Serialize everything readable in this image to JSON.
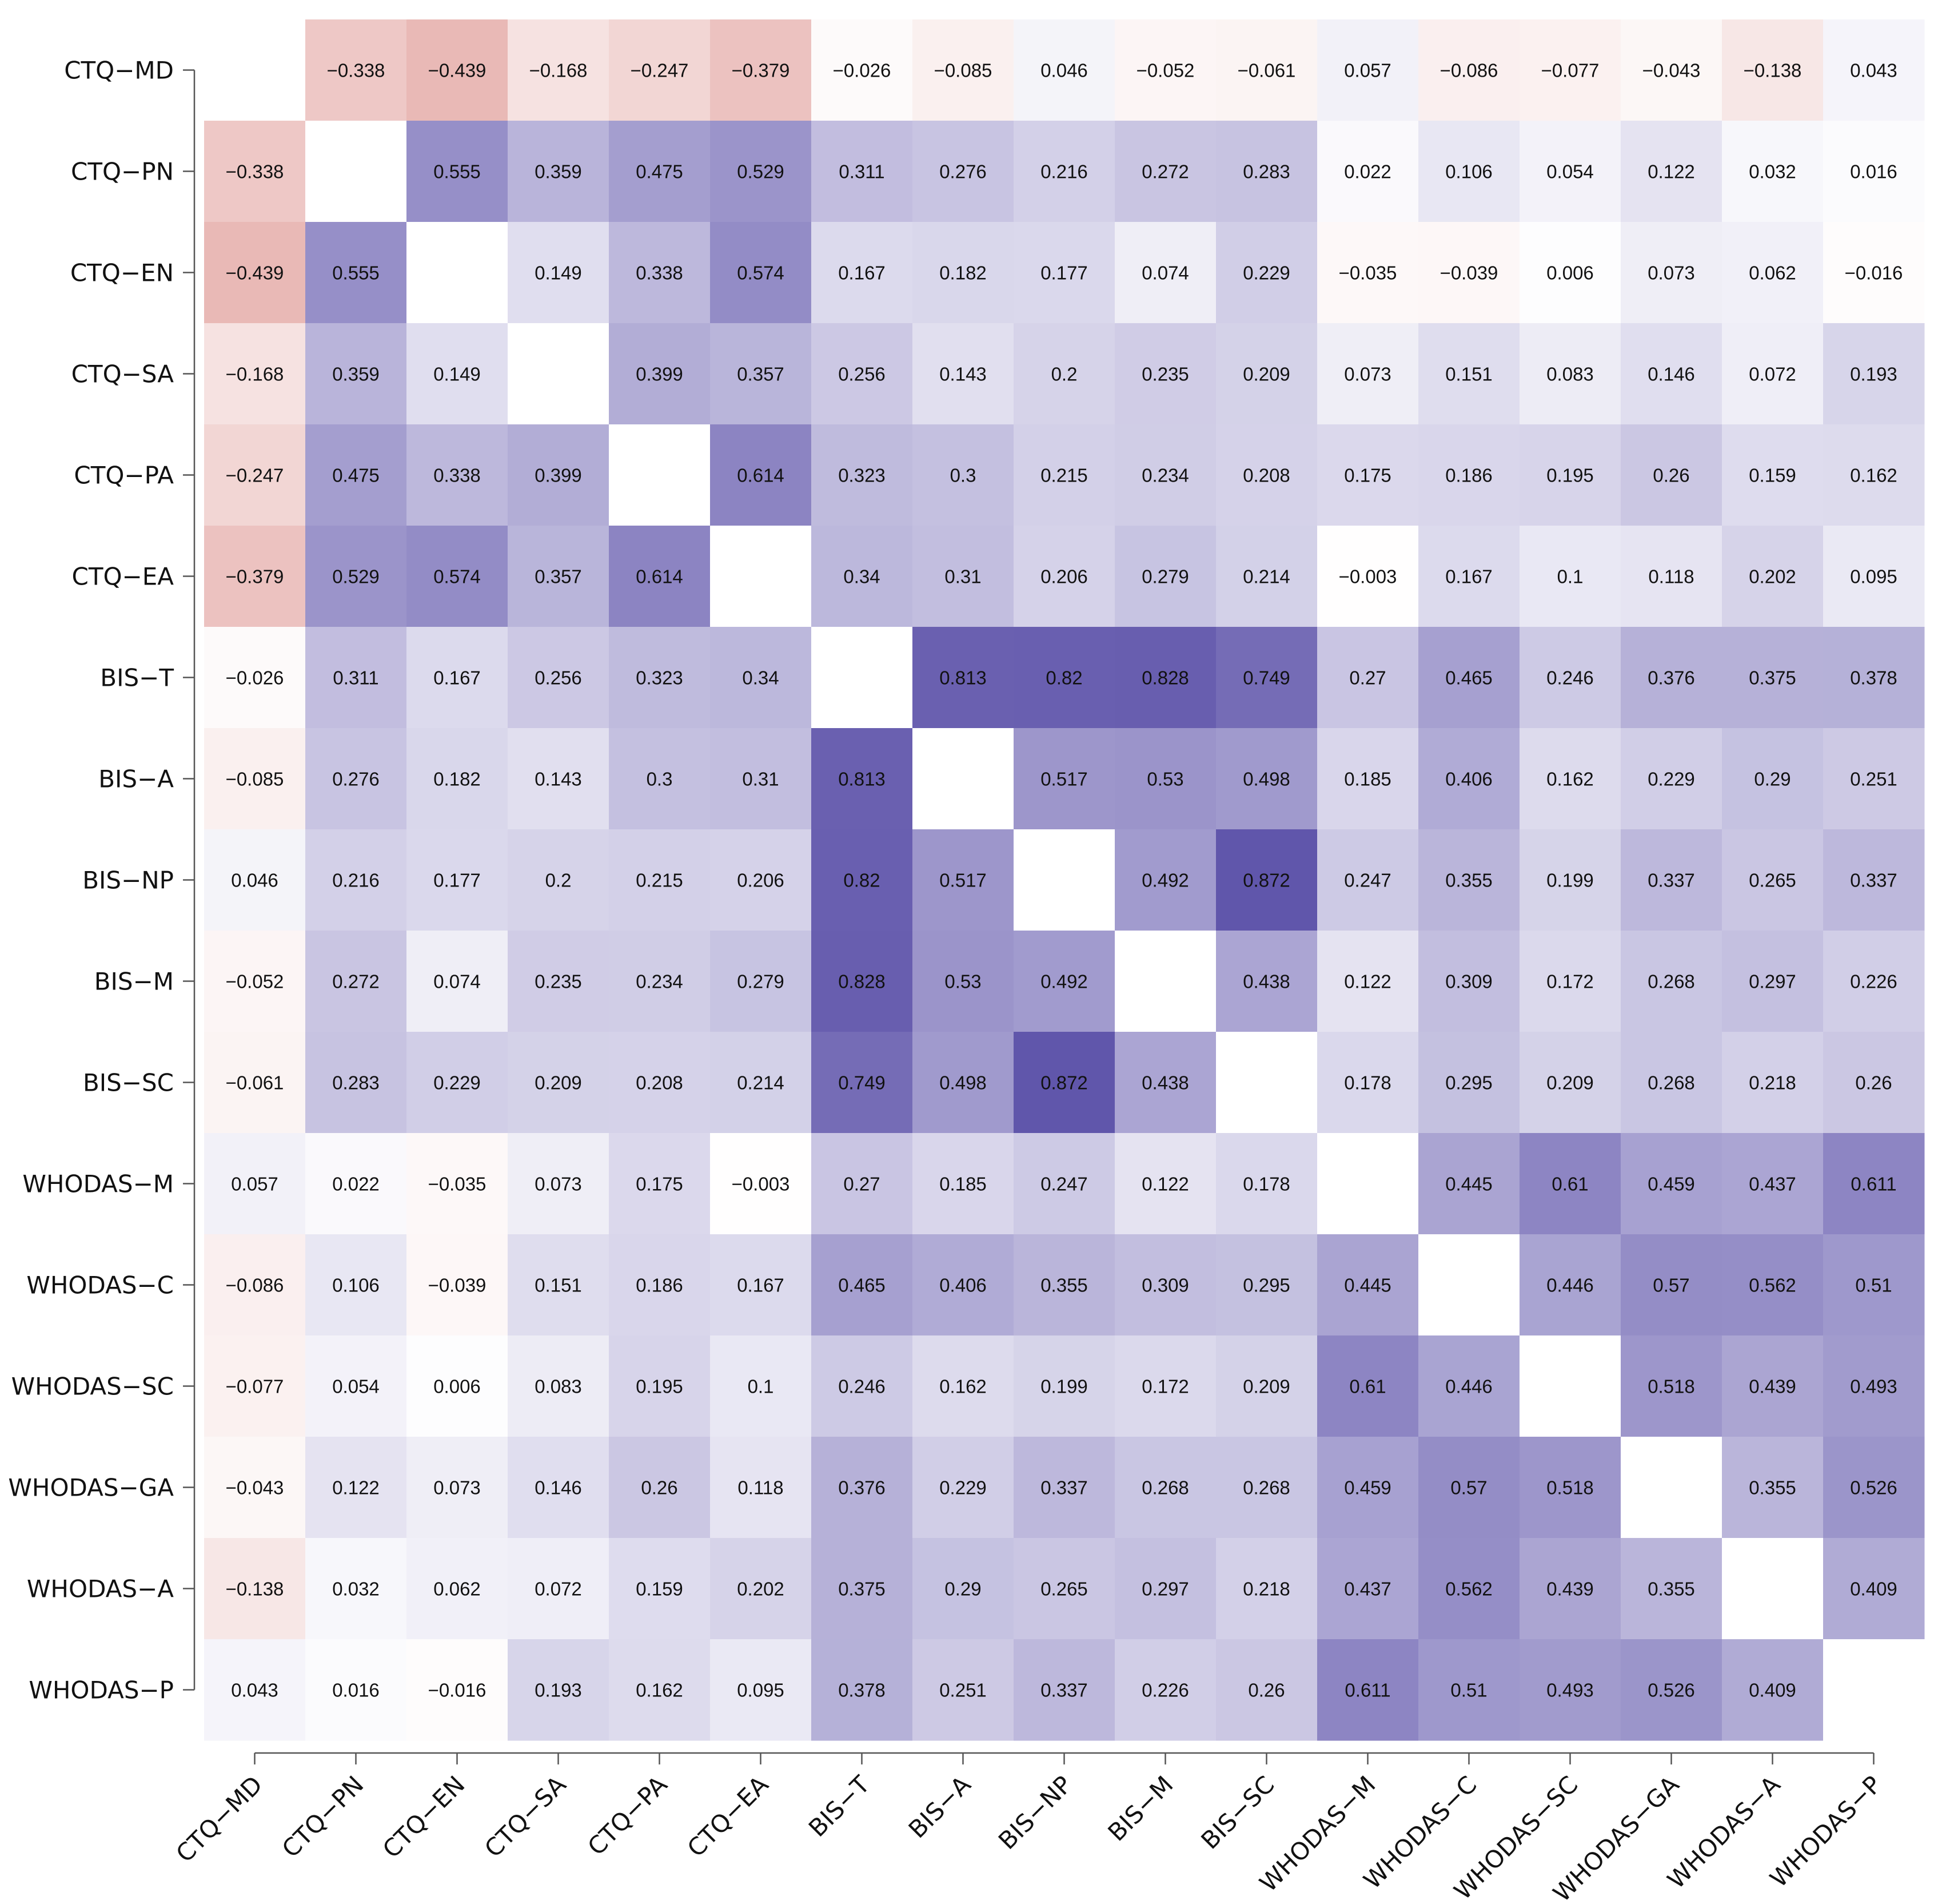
{
  "chart_data": {
    "type": "heatmap",
    "title": "",
    "xlabel": "",
    "ylabel": "",
    "labels": [
      "CTQ−MD",
      "CTQ−PN",
      "CTQ−EN",
      "CTQ−SA",
      "CTQ−PA",
      "CTQ−EA",
      "BIS−T",
      "BIS−A",
      "BIS−NP",
      "BIS−M",
      "BIS−SC",
      "WHODAS−M",
      "WHODAS−C",
      "WHODAS−SC",
      "WHODAS−GA",
      "WHODAS−A",
      "WHODAS−P"
    ],
    "matrix": [
      [
        null,
        -0.338,
        -0.439,
        -0.168,
        -0.247,
        -0.379,
        -0.026,
        -0.085,
        0.046,
        -0.052,
        -0.061,
        0.057,
        -0.086,
        -0.077,
        -0.043,
        -0.138,
        0.043
      ],
      [
        -0.338,
        null,
        0.555,
        0.359,
        0.475,
        0.529,
        0.311,
        0.276,
        0.216,
        0.272,
        0.283,
        0.022,
        0.106,
        0.054,
        0.122,
        0.032,
        0.016
      ],
      [
        -0.439,
        0.555,
        null,
        0.149,
        0.338,
        0.574,
        0.167,
        0.182,
        0.177,
        0.074,
        0.229,
        -0.035,
        -0.039,
        0.006,
        0.073,
        0.062,
        -0.016
      ],
      [
        -0.168,
        0.359,
        0.149,
        null,
        0.399,
        0.357,
        0.256,
        0.143,
        0.2,
        0.235,
        0.209,
        0.073,
        0.151,
        0.083,
        0.146,
        0.072,
        0.193
      ],
      [
        -0.247,
        0.475,
        0.338,
        0.399,
        null,
        0.614,
        0.323,
        0.3,
        0.215,
        0.234,
        0.208,
        0.175,
        0.186,
        0.195,
        0.26,
        0.159,
        0.162
      ],
      [
        -0.379,
        0.529,
        0.574,
        0.357,
        0.614,
        null,
        0.34,
        0.31,
        0.206,
        0.279,
        0.214,
        -0.003,
        0.167,
        0.1,
        0.118,
        0.202,
        0.095
      ],
      [
        -0.026,
        0.311,
        0.167,
        0.256,
        0.323,
        0.34,
        null,
        0.813,
        0.82,
        0.828,
        0.749,
        0.27,
        0.465,
        0.246,
        0.376,
        0.375,
        0.378
      ],
      [
        -0.085,
        0.276,
        0.182,
        0.143,
        0.3,
        0.31,
        0.813,
        null,
        0.517,
        0.53,
        0.498,
        0.185,
        0.406,
        0.162,
        0.229,
        0.29,
        0.251
      ],
      [
        0.046,
        0.216,
        0.177,
        0.2,
        0.215,
        0.206,
        0.82,
        0.517,
        null,
        0.492,
        0.872,
        0.247,
        0.355,
        0.199,
        0.337,
        0.265,
        0.337
      ],
      [
        -0.052,
        0.272,
        0.074,
        0.235,
        0.234,
        0.279,
        0.828,
        0.53,
        0.492,
        null,
        0.438,
        0.122,
        0.309,
        0.172,
        0.268,
        0.297,
        0.226
      ],
      [
        -0.061,
        0.283,
        0.229,
        0.209,
        0.208,
        0.214,
        0.749,
        0.498,
        0.872,
        0.438,
        null,
        0.178,
        0.295,
        0.209,
        0.268,
        0.218,
        0.26
      ],
      [
        0.057,
        0.022,
        -0.035,
        0.073,
        0.175,
        -0.003,
        0.27,
        0.185,
        0.247,
        0.122,
        0.178,
        null,
        0.445,
        0.61,
        0.459,
        0.437,
        0.611
      ],
      [
        -0.086,
        0.106,
        -0.039,
        0.151,
        0.186,
        0.167,
        0.465,
        0.406,
        0.355,
        0.309,
        0.295,
        0.445,
        null,
        0.446,
        0.57,
        0.562,
        0.51
      ],
      [
        -0.077,
        0.054,
        0.006,
        0.083,
        0.195,
        0.1,
        0.246,
        0.162,
        0.199,
        0.172,
        0.209,
        0.61,
        0.446,
        null,
        0.518,
        0.439,
        0.493
      ],
      [
        -0.043,
        0.122,
        0.073,
        0.146,
        0.26,
        0.118,
        0.376,
        0.229,
        0.337,
        0.268,
        0.268,
        0.459,
        0.57,
        0.518,
        null,
        0.355,
        0.526
      ],
      [
        -0.138,
        0.032,
        0.062,
        0.072,
        0.159,
        0.202,
        0.375,
        0.29,
        0.265,
        0.297,
        0.218,
        0.437,
        0.562,
        0.439,
        0.355,
        null,
        0.409
      ],
      [
        0.043,
        0.016,
        -0.016,
        0.193,
        0.162,
        0.095,
        0.378,
        0.251,
        0.337,
        0.226,
        0.26,
        0.611,
        0.51,
        0.493,
        0.526,
        0.409,
        null
      ]
    ],
    "color_scale": {
      "negative": "#d06a64",
      "zero": "#ffffff",
      "positive": "#4b3fa0",
      "range": [
        -1,
        1
      ]
    },
    "diagonal": "blank",
    "grid": false,
    "legend": "none"
  }
}
